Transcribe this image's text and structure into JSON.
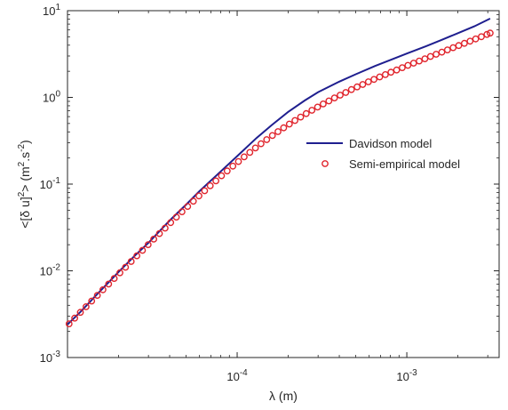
{
  "chart_data": {
    "type": "line",
    "xscale": "log",
    "yscale": "log",
    "xlim": [
      1e-05,
      0.0035
    ],
    "ylim": [
      0.001,
      10
    ],
    "x_ticks": [
      {
        "value": 0.0001,
        "base": "10",
        "exp": "-4"
      },
      {
        "value": 0.001,
        "base": "10",
        "exp": "-3"
      }
    ],
    "y_ticks": [
      {
        "value": 0.001,
        "base": "10",
        "exp": "-3"
      },
      {
        "value": 0.01,
        "base": "10",
        "exp": "-2"
      },
      {
        "value": 0.1,
        "base": "10",
        "exp": "-1"
      },
      {
        "value": 1,
        "base": "10",
        "exp": "0"
      },
      {
        "value": 10,
        "base": "10",
        "exp": "1"
      }
    ],
    "xlabel": "λ (m)",
    "ylabel": "<[δ u]² > (m².s⁻²)",
    "xlabel_parts": {
      "text": "λ (m)"
    },
    "ylabel_parts": {
      "p1": "<[δ u]",
      "sup1": "2",
      "p2": "> (m",
      "sup2": "2",
      "p3": ".s",
      "sup3": "-2",
      "p4": ")"
    },
    "legend_position": "right",
    "grid": false,
    "series": [
      {
        "name": "Davidson model",
        "style": "line",
        "color": "#1f1f8f",
        "x": [
          1e-05,
          1.2e-05,
          1.5e-05,
          2e-05,
          2.5e-05,
          3e-05,
          4e-05,
          5e-05,
          6e-05,
          8e-05,
          0.0001,
          0.00013,
          0.00016,
          0.0002,
          0.00025,
          0.0003,
          0.0004,
          0.0005,
          0.00065,
          0.0008,
          0.001,
          0.0013,
          0.0016,
          0.002,
          0.0025,
          0.0031
        ],
        "y": [
          0.0024,
          0.0034,
          0.0054,
          0.0097,
          0.015,
          0.021,
          0.038,
          0.058,
          0.083,
          0.14,
          0.21,
          0.34,
          0.48,
          0.68,
          0.92,
          1.15,
          1.52,
          1.85,
          2.3,
          2.7,
          3.2,
          3.9,
          4.6,
          5.5,
          6.6,
          8.1
        ]
      },
      {
        "name": "Semi-empirical model",
        "style": "markers",
        "color": "#e0242c",
        "x": [
          1.022e-05,
          1.103e-05,
          1.191e-05,
          1.286e-05,
          1.388e-05,
          1.499e-05,
          1.618e-05,
          1.747e-05,
          1.886e-05,
          2.036e-05,
          2.198e-05,
          2.374e-05,
          2.563e-05,
          2.767e-05,
          2.987e-05,
          3.225e-05,
          3.482e-05,
          3.759e-05,
          4.059e-05,
          4.382e-05,
          4.731e-05,
          5.108e-05,
          5.515e-05,
          5.954e-05,
          6.428e-05,
          6.94e-05,
          7.493e-05,
          8.09e-05,
          8.734e-05,
          9.43e-05,
          0.0001018,
          0.0001099,
          0.0001187,
          0.0001281,
          0.0001383,
          0.0001494,
          0.0001613,
          0.0001741,
          0.000188,
          0.000203,
          0.0002191,
          0.0002366,
          0.0002554,
          0.0002758,
          0.0002978,
          0.0003215,
          0.0003471,
          0.0003748,
          0.0004046,
          0.0004368,
          0.0004716,
          0.0005092,
          0.0005497,
          0.0005935,
          0.0006408,
          0.0006918,
          0.0007469,
          0.0008064,
          0.0008707,
          0.00094,
          0.001015,
          0.001096,
          0.001183,
          0.001277,
          0.001379,
          0.001489,
          0.001608,
          0.001736,
          0.001874,
          0.002023,
          0.002185,
          0.002359,
          0.002546,
          0.002749,
          0.002968,
          0.0031
        ],
        "y": [
          0.00245,
          0.00285,
          0.00332,
          0.00385,
          0.00448,
          0.00521,
          0.00605,
          0.00703,
          0.00817,
          0.0095,
          0.011,
          0.0128,
          0.0149,
          0.0172,
          0.02,
          0.0232,
          0.0269,
          0.0311,
          0.036,
          0.0416,
          0.048,
          0.0553,
          0.0636,
          0.073,
          0.0837,
          0.0957,
          0.109,
          0.125,
          0.142,
          0.161,
          0.182,
          0.206,
          0.232,
          0.261,
          0.292,
          0.326,
          0.363,
          0.403,
          0.446,
          0.492,
          0.541,
          0.594,
          0.65,
          0.71,
          0.773,
          0.84,
          0.91,
          0.985,
          1.06,
          1.14,
          1.23,
          1.32,
          1.41,
          1.51,
          1.61,
          1.72,
          1.83,
          1.95,
          2.07,
          2.2,
          2.34,
          2.48,
          2.63,
          2.79,
          2.96,
          3.14,
          3.33,
          3.53,
          3.74,
          3.96,
          4.2,
          4.45,
          4.72,
          5.01,
          5.32,
          5.52
        ]
      }
    ]
  }
}
